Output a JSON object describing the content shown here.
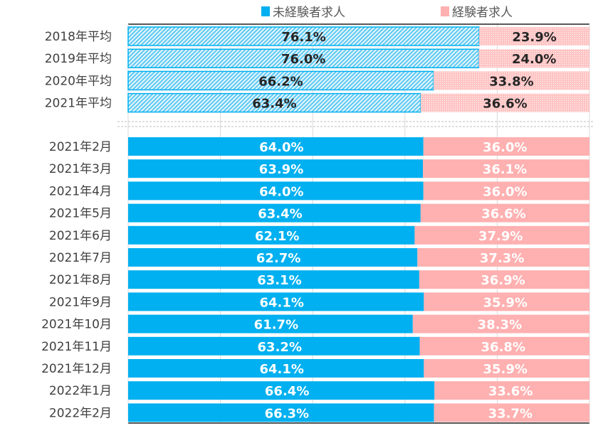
{
  "chart_data": {
    "type": "bar",
    "orientation": "horizontal",
    "stacked": "percent",
    "title": "",
    "xlabel": "",
    "ylabel": "",
    "xlim": [
      0,
      100
    ],
    "grid": true,
    "legend_position": "top",
    "colors": {
      "inexperienced": "#00B0F0",
      "experienced": "#FFB0B0",
      "hatch_blue": "#7FD4F5",
      "hatch_pink": "#FFD0D0"
    },
    "series": [
      {
        "name": "未経験者求人",
        "values": [
          76.1,
          76.0,
          66.2,
          63.4,
          64.0,
          63.9,
          64.0,
          63.4,
          62.1,
          62.7,
          63.1,
          64.1,
          61.7,
          63.2,
          64.1,
          66.4,
          66.3
        ],
        "labels": [
          "76.1%",
          "76.0%",
          "66.2%",
          "63.4%",
          "64.0%",
          "63.9%",
          "64.0%",
          "63.4%",
          "62.1%",
          "62.7%",
          "63.1%",
          "64.1%",
          "61.7%",
          "63.2%",
          "64.1%",
          "66.4%",
          "66.3%"
        ]
      },
      {
        "name": "経験者求人",
        "values": [
          23.9,
          24.0,
          33.8,
          36.6,
          36.0,
          36.1,
          36.0,
          36.6,
          37.9,
          37.3,
          36.9,
          35.9,
          38.3,
          36.8,
          35.9,
          33.6,
          33.7
        ],
        "labels": [
          "23.9%",
          "24.0%",
          "33.8%",
          "36.6%",
          "36.0%",
          "36.1%",
          "36.0%",
          "36.6%",
          "37.9%",
          "37.3%",
          "36.9%",
          "35.9%",
          "38.3%",
          "36.8%",
          "35.9%",
          "33.6%",
          "33.7%"
        ]
      }
    ],
    "categories": [
      "2018年平均",
      "2019年平均",
      "2020年平均",
      "2021年平均",
      "2021年2月",
      "2021年3月",
      "2021年4月",
      "2021年5月",
      "2021年6月",
      "2021年7月",
      "2021年8月",
      "2021年9月",
      "2021年10月",
      "2021年11月",
      "2021年12月",
      "2022年1月",
      "2022年2月"
    ],
    "annual_average_count": 4
  }
}
